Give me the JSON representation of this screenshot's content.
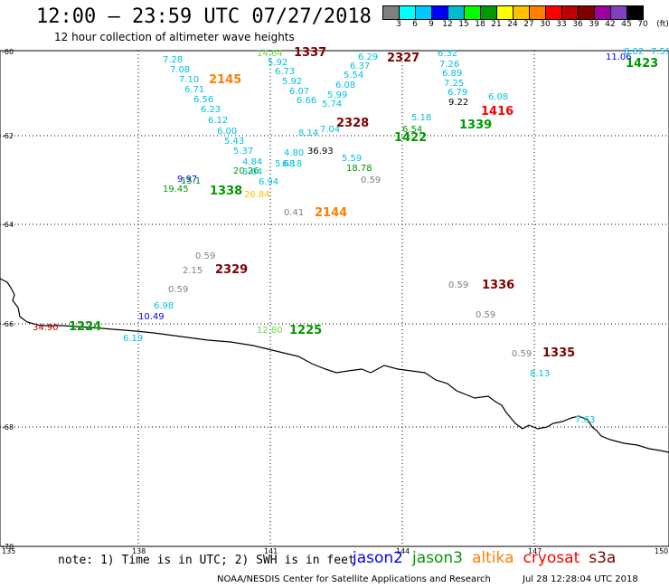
{
  "header": {
    "title": "12:00 – 23:59 UTC 07/27/2018",
    "subtitle": "12 hour collection of altimeter wave heights"
  },
  "legend": {
    "colors": [
      "#808080",
      "#00ffff",
      "#00c8ff",
      "#0000ff",
      "#00bcd0",
      "#00ff00",
      "#009900",
      "#ffff00",
      "#ffc000",
      "#ff8000",
      "#ff0000",
      "#c00000",
      "#800000",
      "#a000a0",
      "#8040c0",
      "#000000"
    ],
    "labels": [
      "3",
      "6",
      "9",
      "12",
      "15",
      "18",
      "21",
      "24",
      "27",
      "30",
      "33",
      "36",
      "39",
      "42",
      "45",
      "70",
      "(ft)"
    ]
  },
  "axes": {
    "lon_labels": [
      "135",
      "138",
      "141",
      "144",
      "147",
      "150"
    ],
    "lat_labels": [
      "-60",
      "-62",
      "-64",
      "-66",
      "-68",
      "-70"
    ]
  },
  "footer": {
    "note": "note:  1) Time is in UTC;  2) SWH is in feet",
    "satellites": [
      {
        "name": "jason2",
        "color": "#0000ff"
      },
      {
        "name": "jason3",
        "color": "#009900"
      },
      {
        "name": "altika",
        "color": "#ff8000"
      },
      {
        "name": "cryosat",
        "color": "#ff0000"
      },
      {
        "name": "s3a",
        "color": "#800000"
      }
    ],
    "credit": "NOAA/NESDIS Center for Satellite Applications and Research",
    "timestamp": "Jul 28 12:28:04 UTC 2018"
  },
  "track_times": [
    {
      "text": "1337",
      "color": "#800000"
    },
    {
      "text": "2327",
      "color": "#800000"
    },
    {
      "text": "2145",
      "color": "#ff8000"
    },
    {
      "text": "2328",
      "color": "#800000"
    },
    {
      "text": "1416",
      "color": "#ff0000"
    },
    {
      "text": "1339",
      "color": "#009900"
    },
    {
      "text": "1422",
      "color": "#009900"
    },
    {
      "text": "1423",
      "color": "#009900"
    },
    {
      "text": "1338",
      "color": "#009900"
    },
    {
      "text": "2144",
      "color": "#ff8000"
    },
    {
      "text": "2329",
      "color": "#800000"
    },
    {
      "text": "1336",
      "color": "#800000"
    },
    {
      "text": "1224",
      "color": "#009900"
    },
    {
      "text": "1225",
      "color": "#009900"
    },
    {
      "text": "1335",
      "color": "#800000"
    }
  ],
  "swh_values": [
    {
      "text": "14.64",
      "color": "#66dd44"
    },
    {
      "text": "6.29",
      "color": "#00c0e0"
    },
    {
      "text": "6.32",
      "color": "#00c0e0"
    },
    {
      "text": "7.28",
      "color": "#00c0e0"
    },
    {
      "text": "5.92",
      "color": "#00c0e0"
    },
    {
      "text": "6.37",
      "color": "#00c0e0"
    },
    {
      "text": "7.26",
      "color": "#00c0e0"
    },
    {
      "text": "7.08",
      "color": "#00c0e0"
    },
    {
      "text": "6.73",
      "color": "#00c0e0"
    },
    {
      "text": "5.54",
      "color": "#00c0e0"
    },
    {
      "text": "6.89",
      "color": "#00c0e0"
    },
    {
      "text": "7.10",
      "color": "#00c0e0"
    },
    {
      "text": "5.92",
      "color": "#00c0e0"
    },
    {
      "text": "6.08",
      "color": "#00c0e0"
    },
    {
      "text": "7.25",
      "color": "#00c0e0"
    },
    {
      "text": "6.71",
      "color": "#00c0e0"
    },
    {
      "text": "6.07",
      "color": "#00c0e0"
    },
    {
      "text": "5.99",
      "color": "#00c0e0"
    },
    {
      "text": "6.79",
      "color": "#00c0e0"
    },
    {
      "text": "6.56",
      "color": "#00c0e0"
    },
    {
      "text": "6.66",
      "color": "#00c0e0"
    },
    {
      "text": "5.74",
      "color": "#00c0e0"
    },
    {
      "text": "9.22",
      "color": "#000000"
    },
    {
      "text": "6.23",
      "color": "#00c0e0"
    },
    {
      "text": "6.12",
      "color": "#00c0e0"
    },
    {
      "text": "6.00",
      "color": "#00c0e0"
    },
    {
      "text": "8.14",
      "color": "#00c0e0"
    },
    {
      "text": "7.04",
      "color": "#00c0e0"
    },
    {
      "text": "5.43",
      "color": "#00c0e0"
    },
    {
      "text": "5.37",
      "color": "#00c0e0"
    },
    {
      "text": "36.93",
      "color": "#000000"
    },
    {
      "text": "4.84",
      "color": "#00c0e0"
    },
    {
      "text": "5.68",
      "color": "#00c0e0"
    },
    {
      "text": "4.80",
      "color": "#00c0e0"
    },
    {
      "text": "20.26",
      "color": "#009900"
    },
    {
      "text": "6.18",
      "color": "#00c0e0"
    },
    {
      "text": "5.64",
      "color": "#00c0e0"
    },
    {
      "text": "18.78",
      "color": "#009900"
    },
    {
      "text": "5.59",
      "color": "#00c0e0"
    },
    {
      "text": "9.97",
      "color": "#0000ff"
    },
    {
      "text": "0.59",
      "color": "#808080"
    },
    {
      "text": "19.45",
      "color": "#009900"
    },
    {
      "text": "15.1",
      "color": "#009900"
    },
    {
      "text": "6.94",
      "color": "#00c0e0"
    },
    {
      "text": "26.84",
      "color": "#ffc000"
    },
    {
      "text": "0.41",
      "color": "#808080"
    },
    {
      "text": "0.59",
      "color": "#808080"
    },
    {
      "text": "2.15",
      "color": "#808080"
    },
    {
      "text": "0.59",
      "color": "#808080"
    },
    {
      "text": "0.59",
      "color": "#808080"
    },
    {
      "text": "6.98",
      "color": "#00c0e0"
    },
    {
      "text": "10.49",
      "color": "#0000ff"
    },
    {
      "text": "0.59",
      "color": "#808080"
    },
    {
      "text": "34.90",
      "color": "#c00000"
    },
    {
      "text": "6.19",
      "color": "#00c0e0"
    },
    {
      "text": "12.80",
      "color": "#66dd44"
    },
    {
      "text": "0.59",
      "color": "#808080"
    },
    {
      "text": "8.13",
      "color": "#00c0e0"
    },
    {
      "text": "7.63",
      "color": "#00c0e0"
    },
    {
      "text": "11.06",
      "color": "#0000ff"
    },
    {
      "text": "8.82",
      "color": "#00c0e0"
    },
    {
      "text": "7.59",
      "color": "#00c0e0"
    },
    {
      "text": "6.08",
      "color": "#00c0e0"
    },
    {
      "text": "5.18",
      "color": "#00c0e0"
    },
    {
      "text": "6.54",
      "color": "#009900"
    }
  ]
}
